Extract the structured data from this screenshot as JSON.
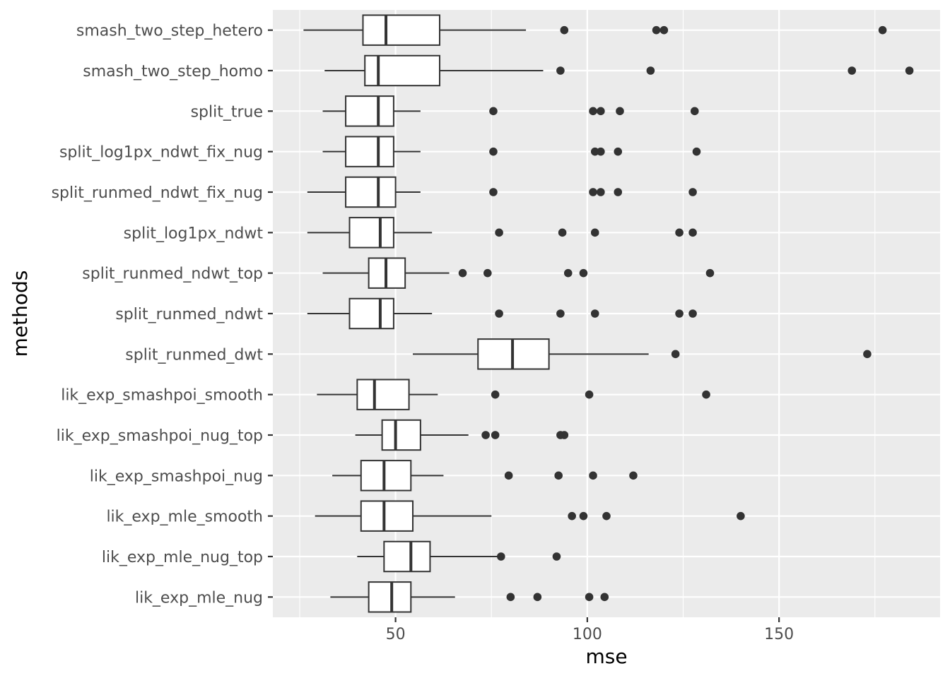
{
  "chart_data": {
    "type": "boxplot",
    "orientation": "horizontal",
    "xlabel": "mse",
    "ylabel": "methods",
    "xlim": [
      18,
      192
    ],
    "x_ticks": [
      50,
      100,
      150
    ],
    "x_minor_ticks": [
      25,
      75,
      125,
      175
    ],
    "grid": true,
    "theme": "ggplot2 grey",
    "series": [
      {
        "name": "smash_two_step_hetero",
        "whisker_low": 26,
        "q1": 41.5,
        "median": 47.5,
        "q3": 61.5,
        "whisker_high": 84,
        "outliers": [
          94,
          118,
          120,
          177
        ]
      },
      {
        "name": "smash_two_step_homo",
        "whisker_low": 31.5,
        "q1": 42,
        "median": 45.5,
        "q3": 61.5,
        "whisker_high": 88.5,
        "outliers": [
          93,
          116.5,
          169,
          184
        ]
      },
      {
        "name": "split_true",
        "whisker_low": 31,
        "q1": 37,
        "median": 45.5,
        "q3": 49.5,
        "whisker_high": 56.5,
        "outliers": [
          75.5,
          101.5,
          103.5,
          108.5,
          128
        ]
      },
      {
        "name": "split_log1px_ndwt_fix_nug",
        "whisker_low": 31,
        "q1": 37,
        "median": 45.5,
        "q3": 49.5,
        "whisker_high": 56.5,
        "outliers": [
          75.5,
          102,
          103.5,
          108,
          128.5
        ]
      },
      {
        "name": "split_runmed_ndwt_fix_nug",
        "whisker_low": 27,
        "q1": 37,
        "median": 45.5,
        "q3": 50,
        "whisker_high": 56.5,
        "outliers": [
          75.5,
          101.5,
          103.5,
          108,
          127.5
        ]
      },
      {
        "name": "split_log1px_ndwt",
        "whisker_low": 27,
        "q1": 38,
        "median": 46,
        "q3": 49.5,
        "whisker_high": 59.5,
        "outliers": [
          77,
          93.5,
          102,
          124,
          127.5
        ]
      },
      {
        "name": "split_runmed_ndwt_top",
        "whisker_low": 31,
        "q1": 43,
        "median": 47.5,
        "q3": 52.5,
        "whisker_high": 64,
        "outliers": [
          67.5,
          74,
          95,
          99,
          132
        ]
      },
      {
        "name": "split_runmed_ndwt",
        "whisker_low": 27,
        "q1": 38,
        "median": 46,
        "q3": 49.5,
        "whisker_high": 59.5,
        "outliers": [
          77,
          93,
          102,
          124,
          127.5
        ]
      },
      {
        "name": "split_runmed_dwt",
        "whisker_low": 54.5,
        "q1": 71.5,
        "median": 80.5,
        "q3": 90,
        "whisker_high": 116,
        "outliers": [
          123,
          173
        ]
      },
      {
        "name": "lik_exp_smashpoi_smooth",
        "whisker_low": 29.5,
        "q1": 40,
        "median": 44.5,
        "q3": 53.5,
        "whisker_high": 61,
        "outliers": [
          76,
          100.5,
          131
        ]
      },
      {
        "name": "lik_exp_smashpoi_nug_top",
        "whisker_low": 39.5,
        "q1": 46.5,
        "median": 50,
        "q3": 56.5,
        "whisker_high": 69,
        "outliers": [
          73.5,
          76,
          93,
          94
        ]
      },
      {
        "name": "lik_exp_smashpoi_nug",
        "whisker_low": 33.5,
        "q1": 41,
        "median": 47,
        "q3": 54,
        "whisker_high": 62.5,
        "outliers": [
          79.5,
          92.5,
          101.5,
          112
        ]
      },
      {
        "name": "lik_exp_mle_smooth",
        "whisker_low": 29,
        "q1": 41,
        "median": 47,
        "q3": 54.5,
        "whisker_high": 75,
        "outliers": [
          96,
          99,
          105,
          140
        ]
      },
      {
        "name": "lik_exp_mle_nug_top",
        "whisker_low": 40,
        "q1": 47,
        "median": 54,
        "q3": 59,
        "whisker_high": 77,
        "outliers": [
          77.5,
          92
        ]
      },
      {
        "name": "lik_exp_mle_nug",
        "whisker_low": 33,
        "q1": 43,
        "median": 49,
        "q3": 54,
        "whisker_high": 65.5,
        "outliers": [
          80,
          87,
          100.5,
          104.5
        ]
      }
    ]
  }
}
